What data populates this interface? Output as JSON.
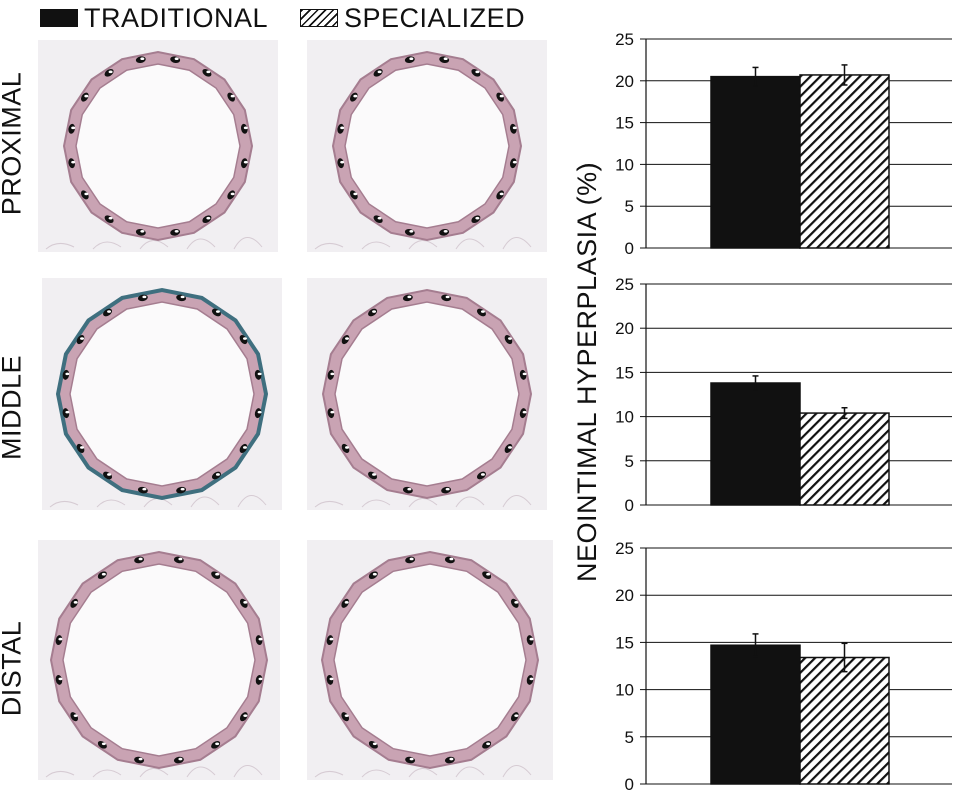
{
  "legend": {
    "items": [
      {
        "label": "TRADITIONAL",
        "pattern": "solid"
      },
      {
        "label": "SPECIALIZED",
        "pattern": "hatch"
      }
    ]
  },
  "rows": [
    {
      "label": "PROXIMAL"
    },
    {
      "label": "MIDDLE"
    },
    {
      "label": "DISTAL"
    }
  ],
  "ylabel": "NEOINTIMAL HYPERPLASIA (%)",
  "colors": {
    "bar_traditional": "#111111",
    "tissue": "#c9a3b3",
    "tissue_dark": "#a57d90",
    "lumen": "#fbfafb",
    "stain_blue": "#3f6f7f"
  },
  "chart_data": [
    {
      "type": "bar",
      "categories": [
        ""
      ],
      "series": [
        {
          "name": "TRADITIONAL",
          "values": [
            20.5
          ],
          "error": [
            1.1
          ]
        },
        {
          "name": "SPECIALIZED",
          "values": [
            20.7
          ],
          "error": [
            1.2
          ]
        }
      ],
      "ylim": [
        0,
        25
      ],
      "yticks": [
        "0",
        "5",
        "10",
        "15",
        "20",
        "25"
      ],
      "grid": true
    },
    {
      "type": "bar",
      "categories": [
        ""
      ],
      "series": [
        {
          "name": "TRADITIONAL",
          "values": [
            13.8
          ],
          "error": [
            0.8
          ]
        },
        {
          "name": "SPECIALIZED",
          "values": [
            10.4
          ],
          "error": [
            0.6
          ]
        }
      ],
      "ylim": [
        0,
        25
      ],
      "yticks": [
        "0",
        "5",
        "10",
        "15",
        "20",
        "25"
      ],
      "grid": true
    },
    {
      "type": "bar",
      "categories": [
        ""
      ],
      "series": [
        {
          "name": "TRADITIONAL",
          "values": [
            14.7
          ],
          "error": [
            1.2
          ]
        },
        {
          "name": "SPECIALIZED",
          "values": [
            13.4
          ],
          "error": [
            1.5
          ]
        }
      ],
      "ylim": [
        0,
        25
      ],
      "yticks": [
        "0",
        "5",
        "10",
        "15",
        "20",
        "25"
      ],
      "grid": true
    }
  ]
}
